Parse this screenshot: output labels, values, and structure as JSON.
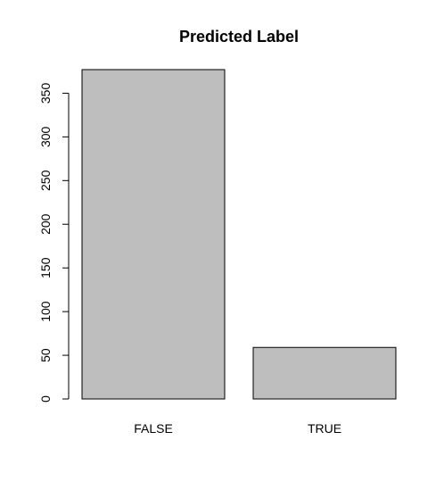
{
  "chart_data": {
    "type": "bar",
    "title": "Predicted Label",
    "xlabel": "",
    "ylabel": "",
    "categories": [
      "FALSE",
      "TRUE"
    ],
    "values": [
      377,
      59
    ],
    "ylim": [
      0,
      377
    ],
    "yticks": [
      0,
      50,
      100,
      150,
      200,
      250,
      300,
      350
    ],
    "grid": false,
    "legend": "none",
    "bar_color": "#bebebe",
    "bar_border_color": "#000000"
  }
}
